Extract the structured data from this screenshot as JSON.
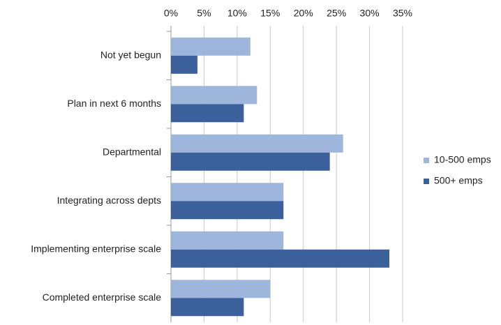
{
  "chart_data": {
    "type": "barh",
    "categories": [
      "Not yet begun",
      "Plan in next 6 months",
      "Departmental",
      "Integrating across depts",
      "Implementing enterprise scale",
      "Completed enterprise scale"
    ],
    "series": [
      {
        "name": "10-500 emps",
        "color": "#9fb6dc",
        "values": [
          12,
          13,
          26,
          17,
          17,
          15
        ]
      },
      {
        "name": "500+ emps",
        "color": "#3c609b",
        "values": [
          4,
          11,
          24,
          17,
          33,
          11
        ]
      }
    ],
    "xlim": [
      0,
      35
    ],
    "xticks": [
      {
        "value": 0,
        "label": "0%"
      },
      {
        "value": 5,
        "label": "5%"
      },
      {
        "value": 10,
        "label": "10%"
      },
      {
        "value": 15,
        "label": "15%"
      },
      {
        "value": 20,
        "label": "20%"
      },
      {
        "value": 25,
        "label": "25%"
      },
      {
        "value": 30,
        "label": "30%"
      },
      {
        "value": 35,
        "label": "35%"
      }
    ],
    "grid": true,
    "legend": "right"
  }
}
